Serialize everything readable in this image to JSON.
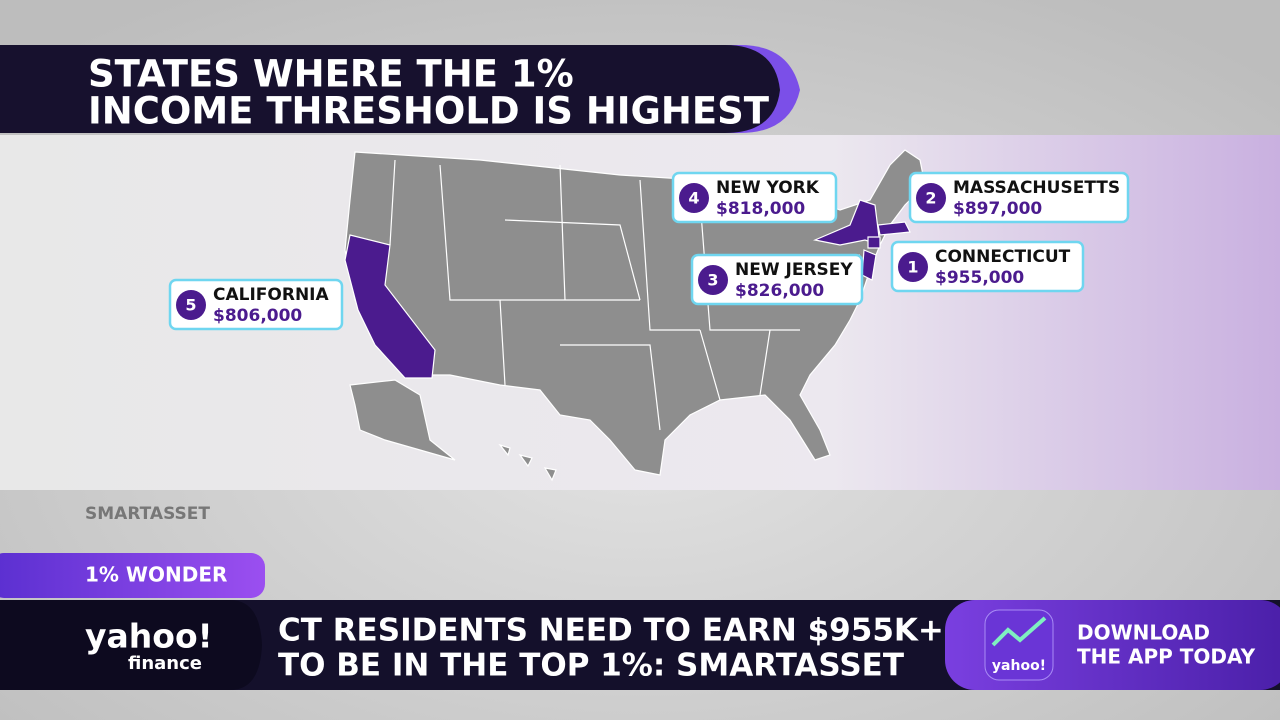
{
  "header": {
    "title": [
      "STATES WHERE THE 1%",
      "INCOME THRESHOLD IS HIGHEST"
    ]
  },
  "callouts": [
    {
      "rank": 5,
      "state": "CALIFORNIA",
      "value": "$806,000"
    },
    {
      "rank": 4,
      "state": "NEW YORK",
      "value": "$818,000"
    },
    {
      "rank": 2,
      "state": "MASSACHUSETTS",
      "value": "$897,000"
    },
    {
      "rank": 3,
      "state": "NEW JERSEY",
      "value": "$826,000"
    },
    {
      "rank": 1,
      "state": "CONNECTICUT",
      "value": "$955,000"
    }
  ],
  "source": "SMARTASSET",
  "tag": "1% WONDER",
  "logo": {
    "brand": "yahoo!",
    "sub": "finance"
  },
  "headline": [
    "CT RESIDENTS NEED TO EARN $955K+",
    "TO BE IN THE TOP 1%: SMARTASSET"
  ],
  "promo": {
    "icon_text": "yahoo!",
    "text": [
      "DOWNLOAD",
      "THE APP TODAY"
    ]
  }
}
